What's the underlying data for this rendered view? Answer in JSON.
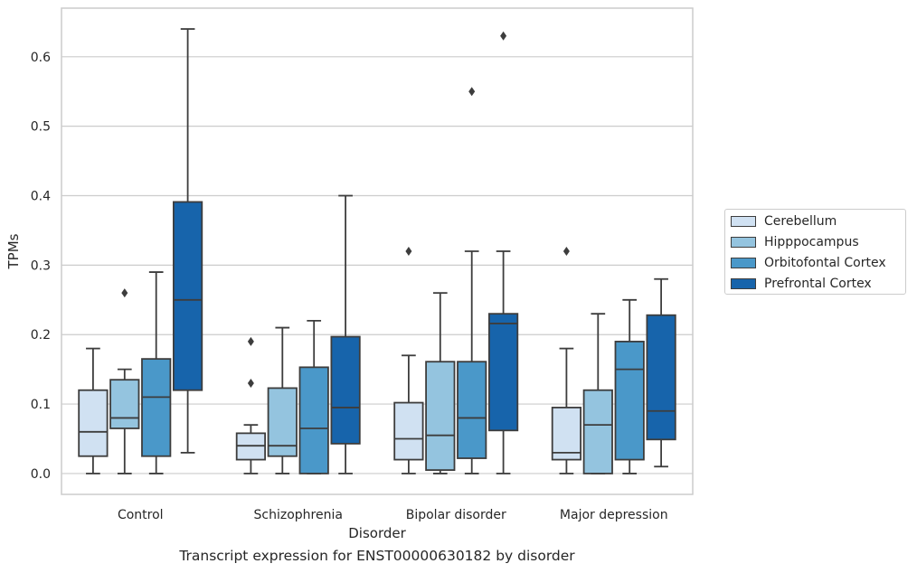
{
  "chart_data": {
    "type": "box",
    "title": "",
    "xlabel": "Disorder",
    "ylabel": "TPMs",
    "caption": "Transcript expression for ENST00000630182 by disorder",
    "ylim": [
      -0.03,
      0.67
    ],
    "yticks": [
      0.0,
      0.1,
      0.2,
      0.3,
      0.4,
      0.5,
      0.6
    ],
    "ytick_labels": [
      "0.0",
      "0.1",
      "0.2",
      "0.3",
      "0.4",
      "0.5",
      "0.6"
    ],
    "grid": "horizontal",
    "legend_position": "right",
    "categories": [
      "Control",
      "Schizophrenia",
      "Bipolar disorder",
      "Major depression"
    ],
    "series": [
      {
        "name": "Cerebellum",
        "color": "#d0e1f2",
        "boxes": [
          {
            "whisker_low": 0.0,
            "q1": 0.025,
            "median": 0.06,
            "q3": 0.12,
            "whisker_high": 0.18,
            "outliers": []
          },
          {
            "whisker_low": 0.0,
            "q1": 0.02,
            "median": 0.04,
            "q3": 0.058,
            "whisker_high": 0.07,
            "outliers": [
              0.13,
              0.19
            ]
          },
          {
            "whisker_low": 0.0,
            "q1": 0.02,
            "median": 0.05,
            "q3": 0.102,
            "whisker_high": 0.17,
            "outliers": [
              0.32
            ]
          },
          {
            "whisker_low": 0.0,
            "q1": 0.02,
            "median": 0.03,
            "q3": 0.095,
            "whisker_high": 0.18,
            "outliers": [
              0.32
            ]
          }
        ]
      },
      {
        "name": "Hipppocampus",
        "color": "#94c4df",
        "boxes": [
          {
            "whisker_low": 0.0,
            "q1": 0.065,
            "median": 0.08,
            "q3": 0.135,
            "whisker_high": 0.15,
            "outliers": [
              0.26
            ]
          },
          {
            "whisker_low": 0.0,
            "q1": 0.025,
            "median": 0.04,
            "q3": 0.123,
            "whisker_high": 0.21,
            "outliers": []
          },
          {
            "whisker_low": 0.0,
            "q1": 0.005,
            "median": 0.055,
            "q3": 0.161,
            "whisker_high": 0.26,
            "outliers": []
          },
          {
            "whisker_low": 0.0,
            "q1": 0.0,
            "median": 0.07,
            "q3": 0.12,
            "whisker_high": 0.23,
            "outliers": []
          }
        ]
      },
      {
        "name": "Orbitofontal Cortex",
        "color": "#4a98c9",
        "boxes": [
          {
            "whisker_low": 0.0,
            "q1": 0.025,
            "median": 0.11,
            "q3": 0.165,
            "whisker_high": 0.29,
            "outliers": []
          },
          {
            "whisker_low": 0.0,
            "q1": 0.0,
            "median": 0.065,
            "q3": 0.153,
            "whisker_high": 0.22,
            "outliers": []
          },
          {
            "whisker_low": 0.0,
            "q1": 0.022,
            "median": 0.08,
            "q3": 0.161,
            "whisker_high": 0.32,
            "outliers": [
              0.55
            ]
          },
          {
            "whisker_low": 0.0,
            "q1": 0.02,
            "median": 0.15,
            "q3": 0.19,
            "whisker_high": 0.25,
            "outliers": []
          }
        ]
      },
      {
        "name": "Prefrontal Cortex",
        "color": "#1764ab",
        "boxes": [
          {
            "whisker_low": 0.03,
            "q1": 0.12,
            "median": 0.25,
            "q3": 0.391,
            "whisker_high": 0.64,
            "outliers": []
          },
          {
            "whisker_low": 0.0,
            "q1": 0.043,
            "median": 0.095,
            "q3": 0.197,
            "whisker_high": 0.4,
            "outliers": []
          },
          {
            "whisker_low": 0.0,
            "q1": 0.062,
            "median": 0.216,
            "q3": 0.23,
            "whisker_high": 0.32,
            "outliers": [
              0.63
            ]
          },
          {
            "whisker_low": 0.01,
            "q1": 0.049,
            "median": 0.09,
            "q3": 0.228,
            "whisker_high": 0.28,
            "outliers": []
          }
        ]
      }
    ]
  }
}
